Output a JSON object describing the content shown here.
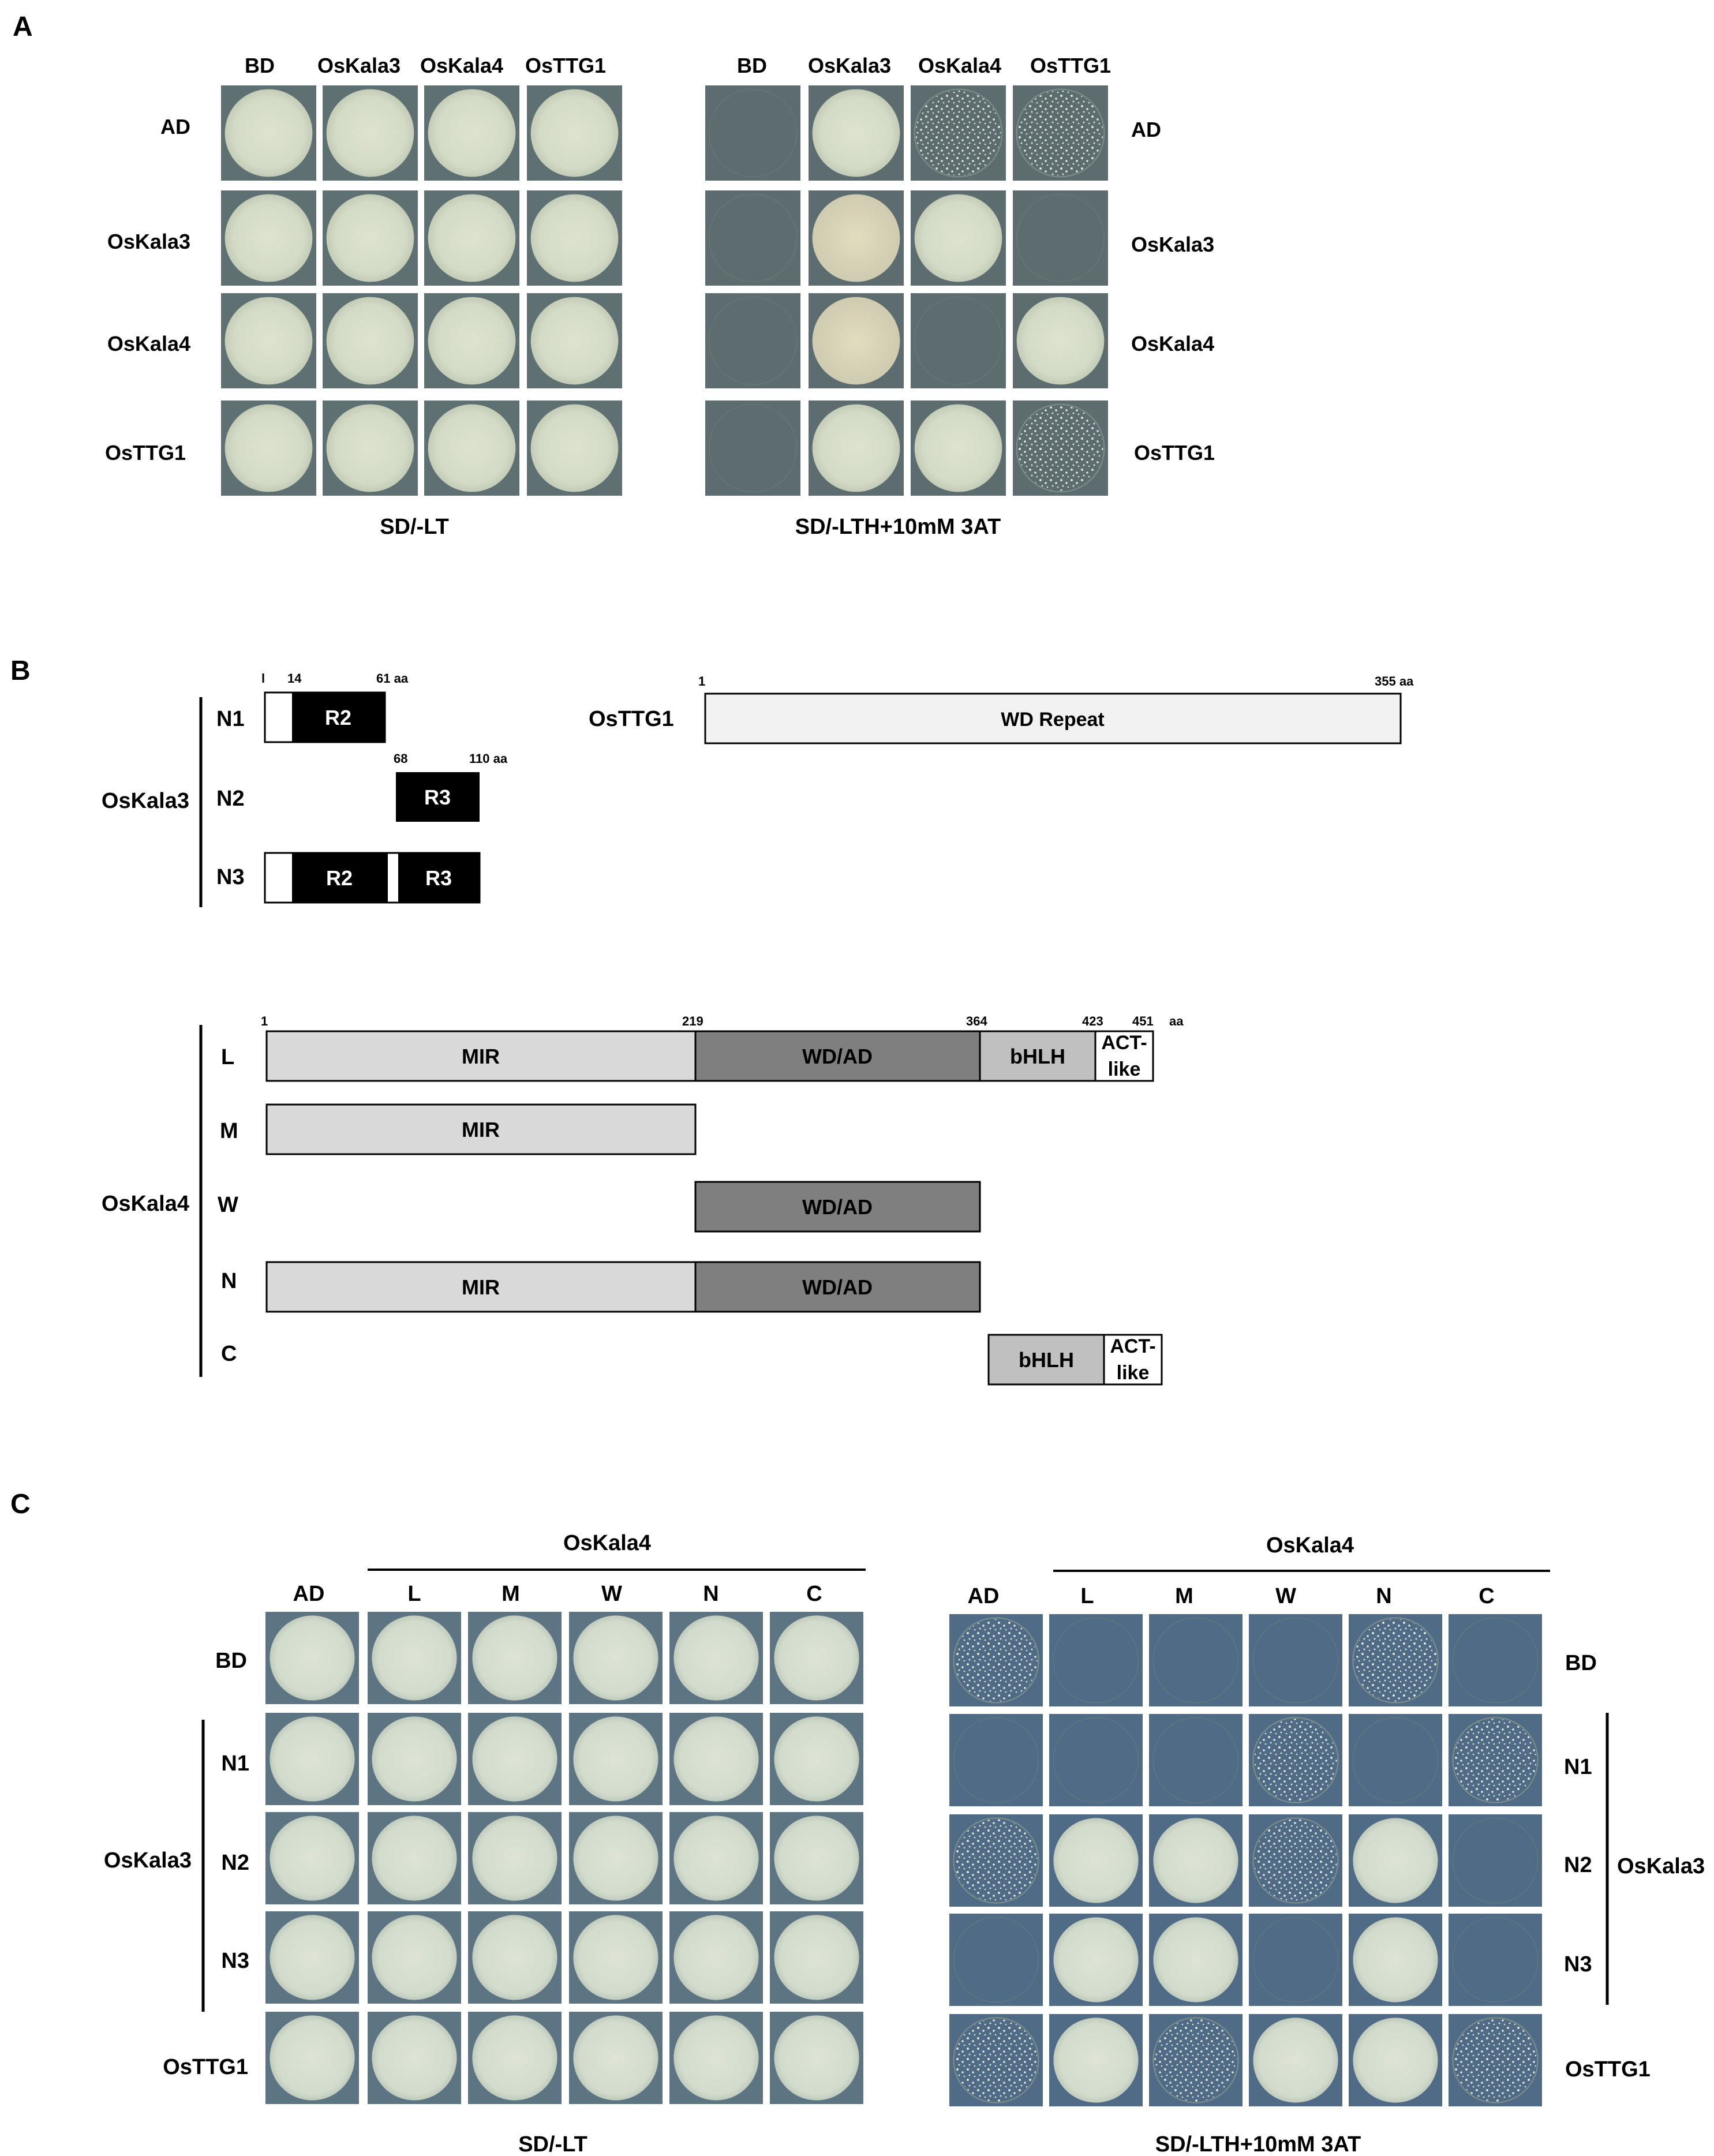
{
  "panelA": {
    "letter": "A",
    "ad_col_labels": [
      "BD",
      "OsKala3",
      "OsKala4",
      "OsTTG1"
    ],
    "ad_row_labels": [
      "AD",
      "OsKala3",
      "OsKala4",
      "OsTTG1"
    ],
    "left_caption": "SD/-LT",
    "right_caption": "SD/-LTH+10mM 3AT",
    "left_growth": [
      [
        "full",
        "full",
        "full",
        "full"
      ],
      [
        "full",
        "full",
        "full",
        "full"
      ],
      [
        "full",
        "full",
        "full",
        "full"
      ],
      [
        "full",
        "full",
        "full",
        "full"
      ]
    ],
    "right_growth": [
      [
        "none",
        "full",
        "speckled",
        "speckled"
      ],
      [
        "none",
        "strong",
        "full",
        "none"
      ],
      [
        "none",
        "strong",
        "none",
        "full"
      ],
      [
        "none",
        "full",
        "full",
        "speckled"
      ]
    ]
  },
  "panelB": {
    "letter": "B",
    "kala3": {
      "name": "OsKala3",
      "n1": {
        "label": "N1",
        "start": "l",
        "mid": "14",
        "end": "61 aa",
        "domain": "R2"
      },
      "n2": {
        "label": "N2",
        "start": "68",
        "end": "110 aa",
        "domain": "R3"
      },
      "n3": {
        "label": "N3",
        "d1": "R2",
        "d2": "R3"
      }
    },
    "ttg1": {
      "name": "OsTTG1",
      "start": "1",
      "end": "355 aa",
      "domain": "WD Repeat"
    },
    "kala4": {
      "name": "OsKala4",
      "pos": {
        "p1": "1",
        "p219": "219",
        "p364": "364",
        "p423": "423",
        "p451": "451",
        "aa": "aa"
      },
      "rows": {
        "L": {
          "label": "L",
          "mir": "MIR",
          "wd": "WD/AD",
          "bhlh": "bHLH",
          "act1": "ACT-",
          "act2": "like"
        },
        "M": {
          "label": "M",
          "mir": "MIR"
        },
        "W": {
          "label": "W",
          "wd": "WD/AD"
        },
        "N": {
          "label": "N",
          "mir": "MIR",
          "wd": "WD/AD"
        },
        "C": {
          "label": "C",
          "bhlh": "bHLH",
          "act1": "ACT-",
          "act2": "like"
        }
      }
    },
    "colors": {
      "black_domain": "#000000",
      "mir": "#d9d9d9",
      "wd": "#7f7f7f",
      "bhlh": "#c0c0c0",
      "ttg1": "#f2f2f2"
    }
  },
  "panelC": {
    "letter": "C",
    "group_label": "OsKala4",
    "col_labels": [
      "AD",
      "L",
      "M",
      "W",
      "N",
      "C"
    ],
    "row_labels": [
      "BD",
      "N1",
      "N2",
      "N3",
      "OsTTG1"
    ],
    "row_group_label": "OsKala3",
    "left_caption": "SD/-LT",
    "right_caption": "SD/-LTH+10mM 3AT",
    "left_growth": [
      [
        "full",
        "full",
        "full",
        "full",
        "full",
        "full"
      ],
      [
        "full",
        "full",
        "full",
        "full",
        "full",
        "full"
      ],
      [
        "full",
        "full",
        "full",
        "full",
        "full",
        "full"
      ],
      [
        "full",
        "full",
        "full",
        "full",
        "full",
        "full"
      ],
      [
        "full",
        "full",
        "full",
        "full",
        "full",
        "full"
      ]
    ],
    "right_growth": [
      [
        "speckled",
        "none",
        "none",
        "none",
        "speckled",
        "none"
      ],
      [
        "none",
        "none",
        "none",
        "speckled",
        "none",
        "speckled"
      ],
      [
        "speckled",
        "full",
        "full",
        "speckled",
        "full",
        "none"
      ],
      [
        "none",
        "full",
        "full",
        "none",
        "full",
        "none"
      ],
      [
        "speckled",
        "full",
        "speckled",
        "full",
        "full",
        "speckled"
      ]
    ]
  }
}
